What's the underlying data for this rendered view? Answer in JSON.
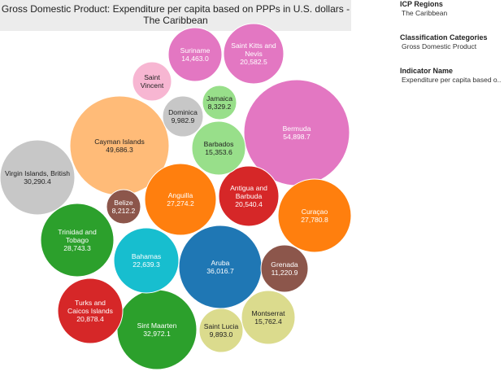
{
  "chart_data": {
    "type": "bubble",
    "title": "Gross Domestic Product: Expenditure per capita based on PPPs in U.S. dollars - The Caribbean",
    "bubbles": [
      {
        "label": [
          "Bermuda"
        ],
        "value": 54898.7,
        "value_label": "54,898.7",
        "color": "#e377c2"
      },
      {
        "label": [
          "Cayman Islands"
        ],
        "value": 49686.3,
        "value_label": "49,686.3",
        "color": "#ffbb78"
      },
      {
        "label": [
          "Aruba"
        ],
        "value": 36016.7,
        "value_label": "36,016.7",
        "color": "#1f77b4"
      },
      {
        "label": [
          "Sint Maarten"
        ],
        "value": 32972.1,
        "value_label": "32,972.1",
        "color": "#2ca02c"
      },
      {
        "label": [
          "Virgin Islands, British"
        ],
        "value": 30290.4,
        "value_label": "30,290.4",
        "color": "#c7c7c7"
      },
      {
        "label": [
          "Trinidad and",
          "Tobago"
        ],
        "value": 28743.3,
        "value_label": "28,743.3",
        "color": "#2ca02c"
      },
      {
        "label": [
          "Curaçao"
        ],
        "value": 27780.8,
        "value_label": "27,780.8",
        "color": "#ff7f0e"
      },
      {
        "label": [
          "Anguilla"
        ],
        "value": 27274.2,
        "value_label": "27,274.2",
        "color": "#ff7f0e"
      },
      {
        "label": [
          "Bahamas"
        ],
        "value": 22639.3,
        "value_label": "22,639.3",
        "color": "#17becf"
      },
      {
        "label": [
          "Turks and",
          "Caicos Islands"
        ],
        "value": 20878.4,
        "value_label": "20,878.4",
        "color": "#d62728"
      },
      {
        "label": [
          "Saint Kitts and",
          "Nevis"
        ],
        "value": 20582.5,
        "value_label": "20,582.5",
        "color": "#e377c2"
      },
      {
        "label": [
          "Antigua and",
          "Barbuda"
        ],
        "value": 20540.4,
        "value_label": "20,540.4",
        "color": "#d62728"
      },
      {
        "label": [
          "Montserrat"
        ],
        "value": 15762.4,
        "value_label": "15,762.4",
        "color": "#dbdb8d"
      },
      {
        "label": [
          "Barbados"
        ],
        "value": 15353.6,
        "value_label": "15,353.6",
        "color": "#98df8a"
      },
      {
        "label": [
          "Suriname"
        ],
        "value": 14463.0,
        "value_label": "14,463.0",
        "color": "#e377c2"
      },
      {
        "label": [
          "Grenada"
        ],
        "value": 11220.9,
        "value_label": "11,220.9",
        "color": "#8c564b"
      },
      {
        "label": [
          "Dominica"
        ],
        "value": 9982.9,
        "value_label": "9,982.9",
        "color": "#c7c7c7"
      },
      {
        "label": [
          "Saint Lucia"
        ],
        "value": 9893.0,
        "value_label": "9,893.0",
        "color": "#dbdb8d"
      },
      {
        "label": [
          "Jamaica"
        ],
        "value": 8329.2,
        "value_label": "8,329.2",
        "color": "#98df8a"
      },
      {
        "label": [
          "Belize"
        ],
        "value": 8212.2,
        "value_label": "8,212.2",
        "color": "#8c564b"
      },
      {
        "label": [
          "Saint",
          "Vincent"
        ],
        "value": null,
        "value_label": "",
        "color": "#f7b6d2"
      }
    ]
  },
  "side_panel": {
    "regions_heading": "ICP Regions",
    "regions_value": "The Caribbean",
    "classification_heading": "Classification Categories",
    "classification_value": "Gross Domestic Product",
    "indicator_heading": "Indicator Name",
    "indicator_value": "Expenditure per capita based o.."
  }
}
